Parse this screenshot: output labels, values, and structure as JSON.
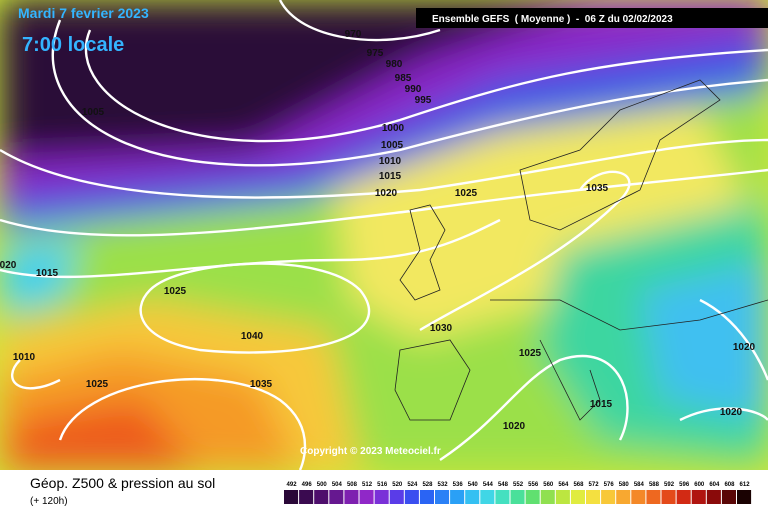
{
  "header": {
    "title": "Mardi 7 fevrier 2023",
    "time": "7:00 locale",
    "model": "Ensemble GEFS  ( Moyenne )  -  06 Z du 02/02/2023"
  },
  "isobar_labels": [
    "970",
    "975",
    "980",
    "985",
    "990",
    "995",
    "1005",
    "1000",
    "1005",
    "1010",
    "1015",
    "1020",
    "1025",
    "1035",
    "020",
    "1015",
    "1025",
    "1040",
    "1030",
    "1010",
    "1025",
    "1020",
    "1025",
    "1035",
    "1015",
    "1020",
    "1020"
  ],
  "copyright": "Copyright © 2023 Meteociel.fr",
  "footer": {
    "title": "Géop. Z500 & pression au sol",
    "subtitle": "(+ 120h)"
  },
  "scale": [
    "492",
    "496",
    "500",
    "504",
    "508",
    "512",
    "516",
    "520",
    "524",
    "528",
    "532",
    "536",
    "540",
    "544",
    "548",
    "552",
    "556",
    "560",
    "564",
    "568",
    "572",
    "576",
    "580",
    "584",
    "588",
    "592",
    "596",
    "600",
    "604",
    "608",
    "612"
  ]
}
